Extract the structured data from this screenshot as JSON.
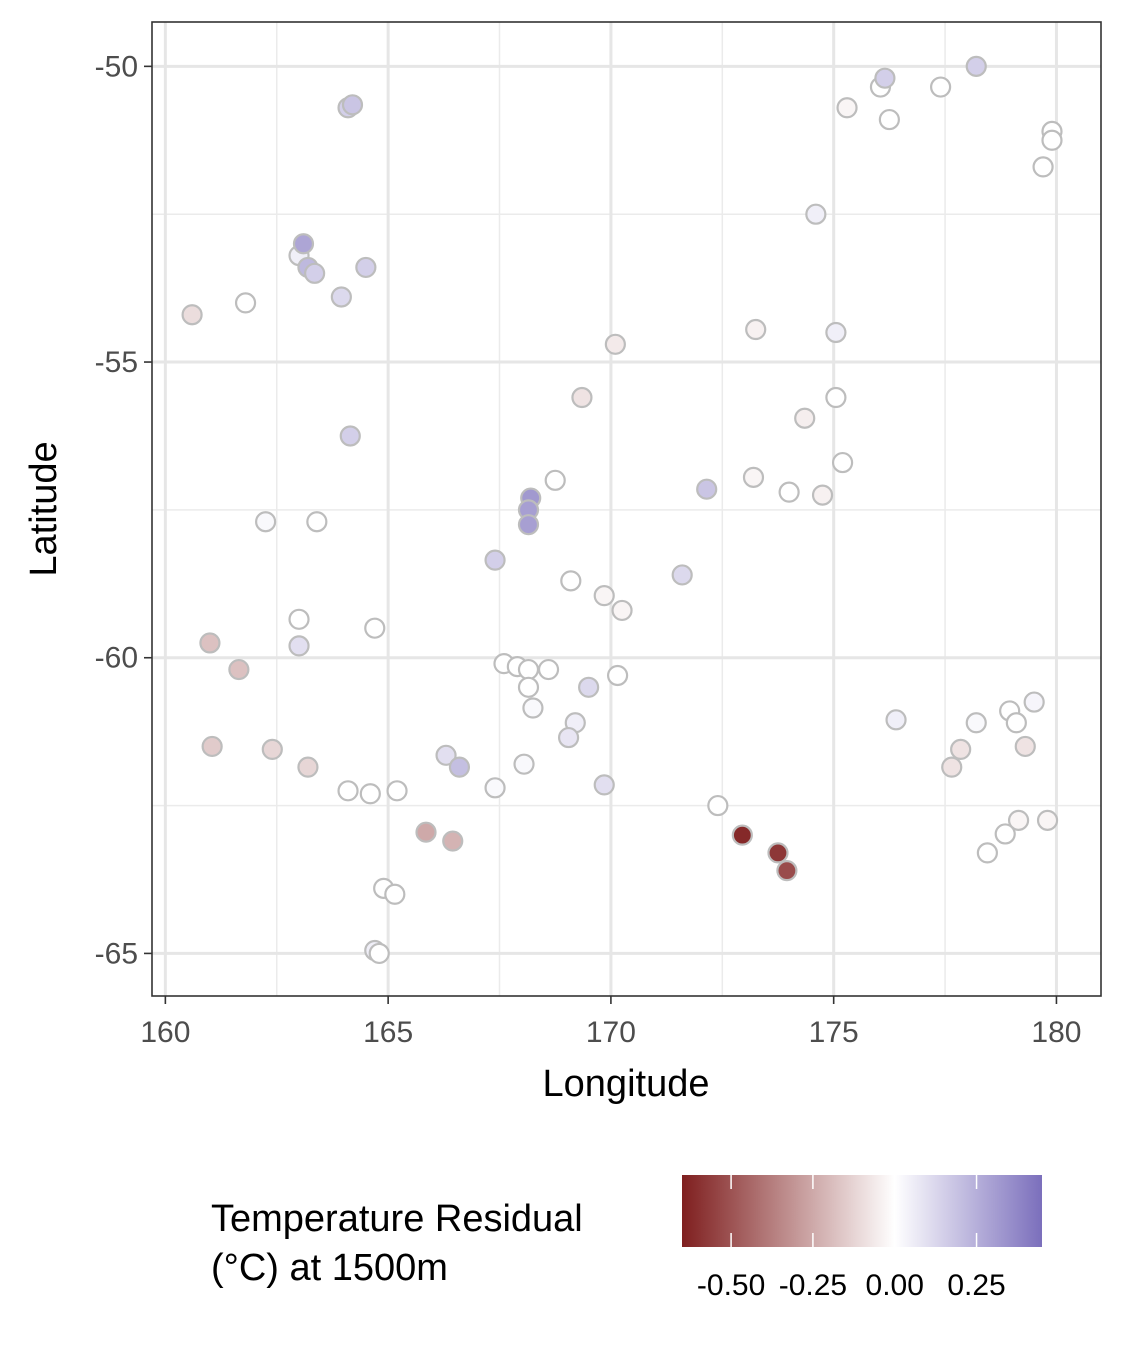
{
  "chart_data": {
    "type": "scatter",
    "xlabel": "Longitude",
    "ylabel": "Latitude",
    "xlim": [
      159.7,
      181.0
    ],
    "ylim": [
      -65.72,
      -49.25
    ],
    "x_ticks": [
      160,
      165,
      170,
      175,
      180
    ],
    "x_tick_labels": [
      "160",
      "165",
      "170",
      "175",
      "180"
    ],
    "y_ticks": [
      -50,
      -55,
      -60,
      -65
    ],
    "y_tick_labels": [
      "-50",
      "-55",
      "-60",
      "-65"
    ],
    "grid": true,
    "legend": {
      "title_lines": [
        "Temperature Residual",
        "(°C) at 1500m"
      ],
      "placement": "bottom",
      "ticks": [
        -0.5,
        -0.25,
        0.0,
        0.25
      ],
      "tick_labels": [
        "-0.50",
        "-0.25",
        "0.00",
        "0.25"
      ],
      "range": [
        -0.65,
        0.45
      ]
    },
    "color_scale": {
      "low": "#7f1f1f",
      "mid": "#ffffff",
      "high": "#7b6fbc"
    },
    "point_stroke": "#bdbdbd",
    "points": [
      {
        "x": 160.6,
        "y": -54.2,
        "v": -0.1
      },
      {
        "x": 161.8,
        "y": -54.0,
        "v": 0.0
      },
      {
        "x": 164.1,
        "y": -50.7,
        "v": 0.15
      },
      {
        "x": 164.2,
        "y": -50.65,
        "v": 0.18
      },
      {
        "x": 163.0,
        "y": -53.2,
        "v": 0.05
      },
      {
        "x": 163.1,
        "y": -53.0,
        "v": 0.28
      },
      {
        "x": 163.2,
        "y": -53.4,
        "v": 0.22
      },
      {
        "x": 163.35,
        "y": -53.5,
        "v": 0.15
      },
      {
        "x": 164.5,
        "y": -53.4,
        "v": 0.15
      },
      {
        "x": 163.95,
        "y": -53.9,
        "v": 0.12
      },
      {
        "x": 164.15,
        "y": -56.25,
        "v": 0.15
      },
      {
        "x": 162.25,
        "y": -57.7,
        "v": 0.02
      },
      {
        "x": 163.4,
        "y": -57.7,
        "v": 0.0
      },
      {
        "x": 163.0,
        "y": -59.35,
        "v": 0.0
      },
      {
        "x": 163.0,
        "y": -59.8,
        "v": 0.1
      },
      {
        "x": 164.7,
        "y": -59.5,
        "v": 0.0
      },
      {
        "x": 161.0,
        "y": -59.75,
        "v": -0.18
      },
      {
        "x": 161.65,
        "y": -60.2,
        "v": -0.18
      },
      {
        "x": 161.05,
        "y": -61.5,
        "v": -0.15
      },
      {
        "x": 162.4,
        "y": -61.55,
        "v": -0.12
      },
      {
        "x": 163.2,
        "y": -61.85,
        "v": -0.12
      },
      {
        "x": 164.1,
        "y": -62.25,
        "v": 0.0
      },
      {
        "x": 164.6,
        "y": -62.3,
        "v": 0.0
      },
      {
        "x": 165.2,
        "y": -62.25,
        "v": 0.0
      },
      {
        "x": 165.85,
        "y": -62.95,
        "v": -0.25
      },
      {
        "x": 166.45,
        "y": -63.1,
        "v": -0.22
      },
      {
        "x": 164.9,
        "y": -63.9,
        "v": 0.0
      },
      {
        "x": 165.15,
        "y": -64.0,
        "v": 0.0
      },
      {
        "x": 164.7,
        "y": -64.95,
        "v": 0.05
      },
      {
        "x": 164.8,
        "y": -65.0,
        "v": 0.0
      },
      {
        "x": 166.3,
        "y": -61.65,
        "v": 0.1
      },
      {
        "x": 166.6,
        "y": -61.85,
        "v": 0.2
      },
      {
        "x": 167.4,
        "y": -62.2,
        "v": 0.02
      },
      {
        "x": 168.05,
        "y": -61.8,
        "v": 0.02
      },
      {
        "x": 168.25,
        "y": -60.85,
        "v": 0.02
      },
      {
        "x": 167.4,
        "y": -58.35,
        "v": 0.15
      },
      {
        "x": 167.6,
        "y": -60.1,
        "v": 0.0
      },
      {
        "x": 167.9,
        "y": -60.15,
        "v": 0.0
      },
      {
        "x": 168.15,
        "y": -60.2,
        "v": 0.0
      },
      {
        "x": 168.6,
        "y": -60.2,
        "v": 0.0
      },
      {
        "x": 168.15,
        "y": -60.5,
        "v": 0.0
      },
      {
        "x": 168.2,
        "y": -57.3,
        "v": 0.32
      },
      {
        "x": 168.15,
        "y": -57.5,
        "v": 0.3
      },
      {
        "x": 168.15,
        "y": -57.75,
        "v": 0.3
      },
      {
        "x": 168.75,
        "y": -57.0,
        "v": 0.0
      },
      {
        "x": 169.35,
        "y": -55.6,
        "v": -0.08
      },
      {
        "x": 170.1,
        "y": -54.7,
        "v": -0.06
      },
      {
        "x": 169.1,
        "y": -58.7,
        "v": 0.0
      },
      {
        "x": 169.85,
        "y": -58.95,
        "v": -0.03
      },
      {
        "x": 170.25,
        "y": -59.2,
        "v": -0.03
      },
      {
        "x": 170.15,
        "y": -60.3,
        "v": 0.0
      },
      {
        "x": 169.5,
        "y": -60.5,
        "v": 0.12
      },
      {
        "x": 169.2,
        "y": -61.1,
        "v": 0.05
      },
      {
        "x": 169.05,
        "y": -61.35,
        "v": 0.08
      },
      {
        "x": 169.85,
        "y": -62.15,
        "v": 0.1
      },
      {
        "x": 171.6,
        "y": -58.6,
        "v": 0.12
      },
      {
        "x": 172.15,
        "y": -57.15,
        "v": 0.18
      },
      {
        "x": 172.4,
        "y": -62.5,
        "v": 0.0
      },
      {
        "x": 172.95,
        "y": -63.0,
        "v": -0.62
      },
      {
        "x": 173.75,
        "y": -63.3,
        "v": -0.58
      },
      {
        "x": 173.95,
        "y": -63.6,
        "v": -0.52
      },
      {
        "x": 173.25,
        "y": -54.45,
        "v": -0.04
      },
      {
        "x": 173.2,
        "y": -56.95,
        "v": -0.03
      },
      {
        "x": 174.0,
        "y": -57.2,
        "v": 0.0
      },
      {
        "x": 174.35,
        "y": -55.95,
        "v": -0.05
      },
      {
        "x": 174.75,
        "y": -57.25,
        "v": -0.04
      },
      {
        "x": 174.6,
        "y": -52.5,
        "v": 0.05
      },
      {
        "x": 175.05,
        "y": -54.5,
        "v": 0.05
      },
      {
        "x": 175.05,
        "y": -55.6,
        "v": 0.0
      },
      {
        "x": 175.2,
        "y": -56.7,
        "v": 0.0
      },
      {
        "x": 175.3,
        "y": -50.7,
        "v": -0.03
      },
      {
        "x": 176.05,
        "y": -50.35,
        "v": 0.0
      },
      {
        "x": 176.15,
        "y": -50.2,
        "v": 0.15
      },
      {
        "x": 176.25,
        "y": -50.9,
        "v": 0.0
      },
      {
        "x": 177.4,
        "y": -50.35,
        "v": 0.0
      },
      {
        "x": 178.2,
        "y": -50.0,
        "v": 0.15
      },
      {
        "x": 179.9,
        "y": -51.1,
        "v": 0.0
      },
      {
        "x": 179.9,
        "y": -51.25,
        "v": 0.0
      },
      {
        "x": 179.7,
        "y": -51.7,
        "v": 0.0
      },
      {
        "x": 176.4,
        "y": -61.05,
        "v": 0.05
      },
      {
        "x": 178.2,
        "y": -61.1,
        "v": 0.02
      },
      {
        "x": 178.95,
        "y": -60.9,
        "v": 0.0
      },
      {
        "x": 179.1,
        "y": -61.1,
        "v": 0.0
      },
      {
        "x": 179.5,
        "y": -60.75,
        "v": 0.03
      },
      {
        "x": 177.85,
        "y": -61.55,
        "v": -0.08
      },
      {
        "x": 177.65,
        "y": -61.85,
        "v": -0.08
      },
      {
        "x": 179.3,
        "y": -61.5,
        "v": -0.08
      },
      {
        "x": 179.15,
        "y": -62.75,
        "v": -0.03
      },
      {
        "x": 179.8,
        "y": -62.75,
        "v": -0.03
      },
      {
        "x": 178.85,
        "y": -62.98,
        "v": 0.0
      },
      {
        "x": 178.45,
        "y": -63.3,
        "v": 0.0
      }
    ]
  }
}
